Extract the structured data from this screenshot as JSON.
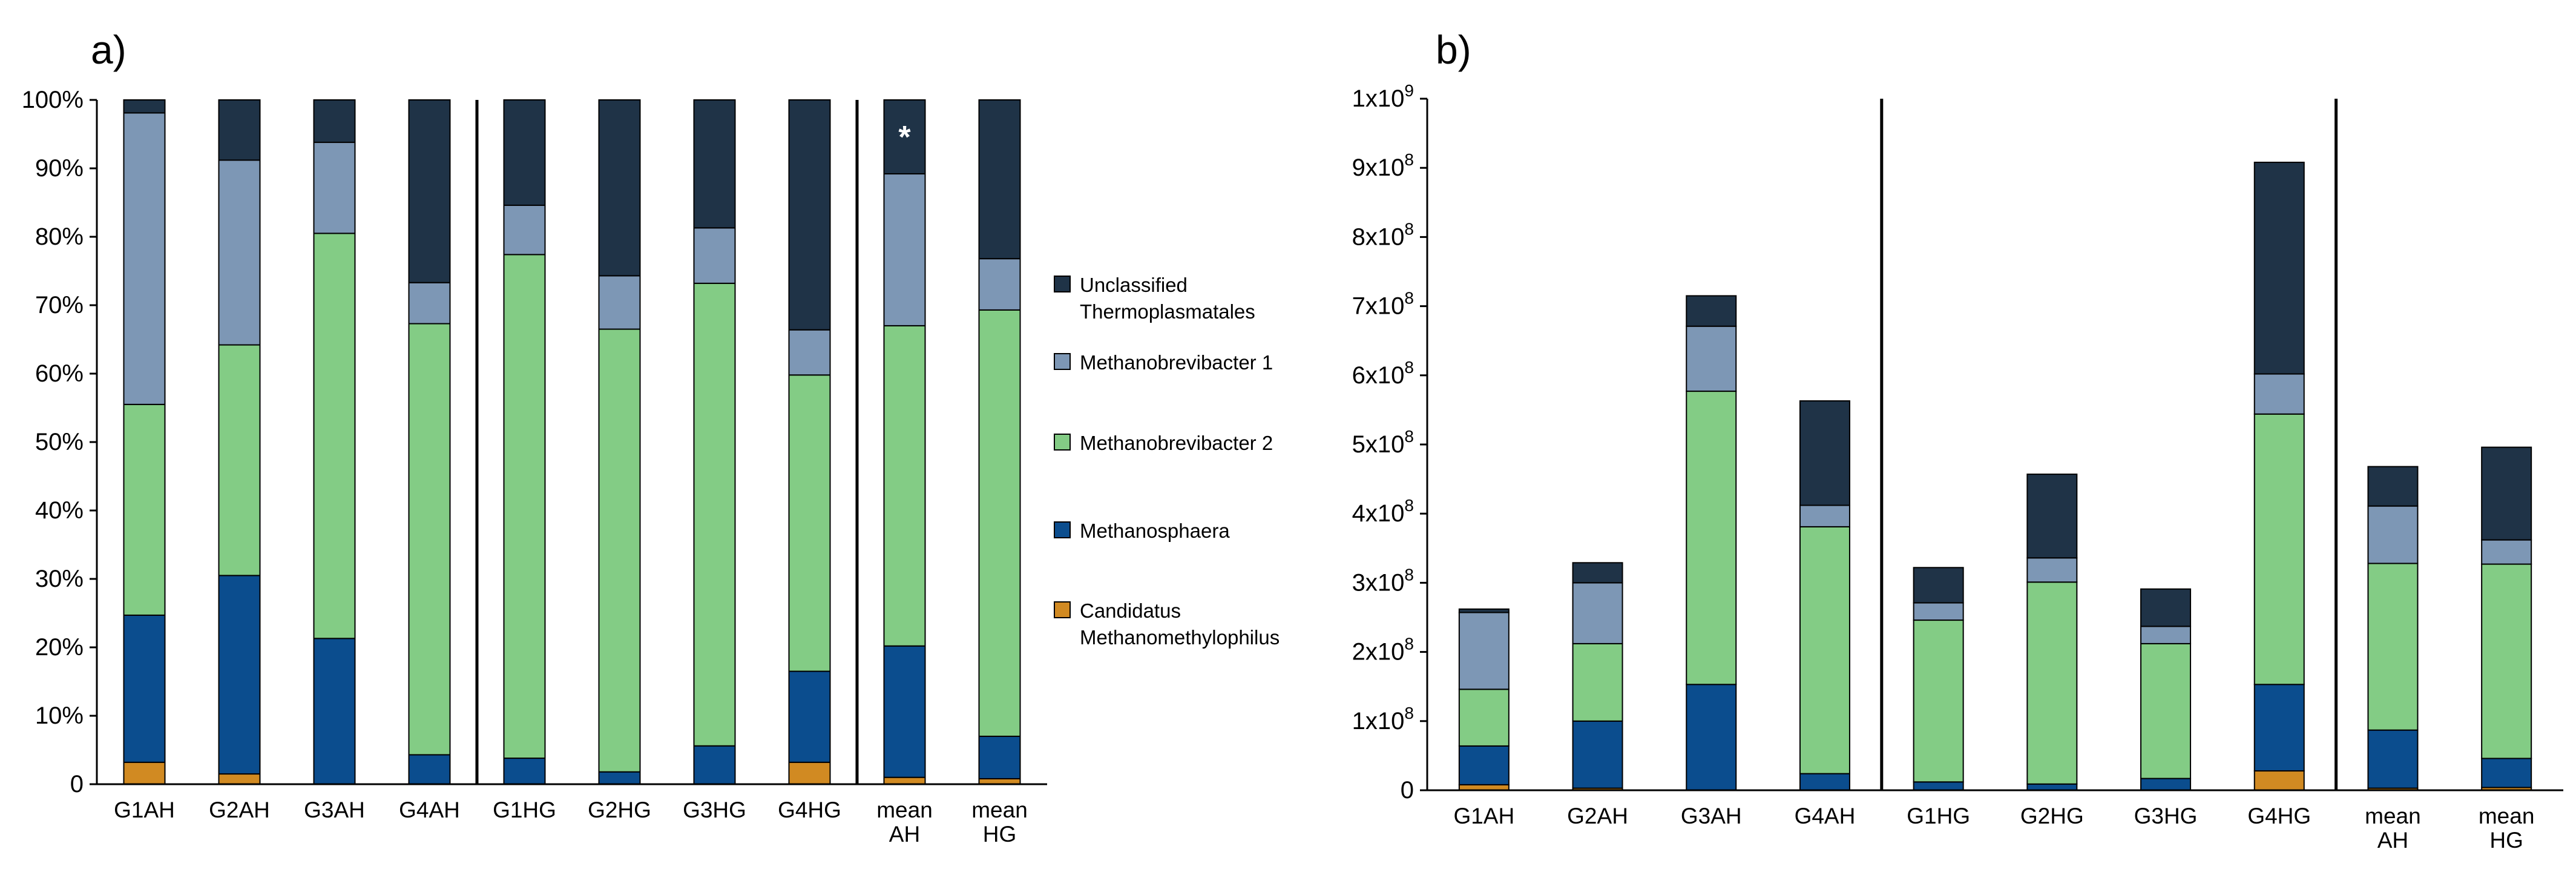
{
  "colors": {
    "Unclassified Thermoplasmatales": "#1f3347",
    "Methanobrevibacter 1": "#7d97b5",
    "Methanobrevibacter 2": "#83cc85",
    "Methanosphaera": "#0b4d8e",
    "Candidatus Methanomethylophilus": "#d18a22"
  },
  "legend": {
    "items": [
      {
        "key": "Unclassified Thermoplasmatales",
        "lines": [
          "Unclassified",
          "Thermoplasmatales"
        ]
      },
      {
        "key": "Methanobrevibacter 1",
        "lines": [
          "Methanobrevibacter 1"
        ]
      },
      {
        "key": "Methanobrevibacter 2",
        "lines": [
          "Methanobrevibacter 2"
        ]
      },
      {
        "key": "Methanosphaera",
        "lines": [
          "Methanosphaera"
        ]
      },
      {
        "key": "Candidatus Methanomethylophilus",
        "lines": [
          "Candidatus",
          "Methanomethylophilus"
        ]
      }
    ]
  },
  "chart_data": [
    {
      "panel": "a)",
      "type": "bar",
      "stacked": true,
      "ylabel": "",
      "xlabel": "",
      "ylim": [
        0,
        100
      ],
      "yticks": [
        "0",
        "10%",
        "20%",
        "30%",
        "40%",
        "50%",
        "60%",
        "70%",
        "80%",
        "90%",
        "100%"
      ],
      "categories": [
        [
          "G1AH"
        ],
        [
          "G2AH"
        ],
        [
          "G3AH"
        ],
        [
          "G4AH"
        ],
        [
          "G1HG"
        ],
        [
          "G2HG"
        ],
        [
          "G3HG"
        ],
        [
          "G4HG"
        ],
        [
          "mean",
          "AH"
        ],
        [
          "mean",
          "HG"
        ]
      ],
      "group_separators_after": [
        3,
        7
      ],
      "annotations": [
        {
          "category_index": 8,
          "text": "*"
        }
      ],
      "series": [
        {
          "name": "Candidatus Methanomethylophilus",
          "values": [
            3.2,
            1.5,
            0,
            0,
            0,
            0,
            0,
            3.2,
            1.0,
            0.8
          ]
        },
        {
          "name": "Methanosphaera",
          "values": [
            21.5,
            29.0,
            21.3,
            4.3,
            3.8,
            1.8,
            5.6,
            13.3,
            19.2,
            6.2
          ]
        },
        {
          "name": "Methanobrevibacter 2",
          "values": [
            30.8,
            33.7,
            59.2,
            63.0,
            73.6,
            64.7,
            67.6,
            43.3,
            46.8,
            62.3
          ]
        },
        {
          "name": "Methanobrevibacter 1",
          "values": [
            42.6,
            27.0,
            13.3,
            6.0,
            7.2,
            7.8,
            8.1,
            6.6,
            22.2,
            7.5
          ]
        },
        {
          "name": "Unclassified Thermoplasmatales",
          "values": [
            1.9,
            8.8,
            6.2,
            26.7,
            15.4,
            25.7,
            18.7,
            33.6,
            10.8,
            23.2
          ]
        }
      ]
    },
    {
      "panel": "b)",
      "type": "bar",
      "stacked": true,
      "ylabel": "",
      "xlabel": "",
      "ylim": [
        0,
        10
      ],
      "yunit": "x10^8",
      "yticks": [
        {
          "base": "0",
          "exp": ""
        },
        {
          "base": "1x10",
          "exp": "8"
        },
        {
          "base": "2x10",
          "exp": "8"
        },
        {
          "base": "3x10",
          "exp": "8"
        },
        {
          "base": "4x10",
          "exp": "8"
        },
        {
          "base": "5x10",
          "exp": "8"
        },
        {
          "base": "6x10",
          "exp": "8"
        },
        {
          "base": "7x10",
          "exp": "8"
        },
        {
          "base": "8x10",
          "exp": "8"
        },
        {
          "base": "9x10",
          "exp": "8"
        },
        {
          "base": "1x10",
          "exp": "9"
        }
      ],
      "categories": [
        [
          "G1AH"
        ],
        [
          "G2AH"
        ],
        [
          "G3AH"
        ],
        [
          "G4AH"
        ],
        [
          "G1HG"
        ],
        [
          "G2HG"
        ],
        [
          "G3HG"
        ],
        [
          "G4HG"
        ],
        [
          "mean",
          "AH"
        ],
        [
          "mean",
          "HG"
        ]
      ],
      "group_separators_after": [
        3,
        7
      ],
      "series": [
        {
          "name": "Candidatus Methanomethylophilus",
          "values": [
            0.08,
            0.03,
            0,
            0,
            0,
            0,
            0,
            0.28,
            0.03,
            0.04
          ]
        },
        {
          "name": "Methanosphaera",
          "values": [
            0.56,
            0.97,
            1.53,
            0.24,
            0.12,
            0.09,
            0.17,
            1.25,
            0.84,
            0.42
          ]
        },
        {
          "name": "Methanobrevibacter 2",
          "values": [
            0.82,
            1.12,
            4.24,
            3.57,
            2.34,
            2.92,
            1.95,
            3.91,
            2.41,
            2.81
          ]
        },
        {
          "name": "Methanobrevibacter 1",
          "values": [
            1.11,
            0.88,
            0.94,
            0.31,
            0.25,
            0.35,
            0.25,
            0.58,
            0.83,
            0.35
          ]
        },
        {
          "name": "Unclassified Thermoplasmatales",
          "values": [
            0.05,
            0.29,
            0.44,
            1.51,
            0.51,
            1.21,
            0.54,
            3.06,
            0.57,
            1.34
          ]
        }
      ]
    }
  ]
}
